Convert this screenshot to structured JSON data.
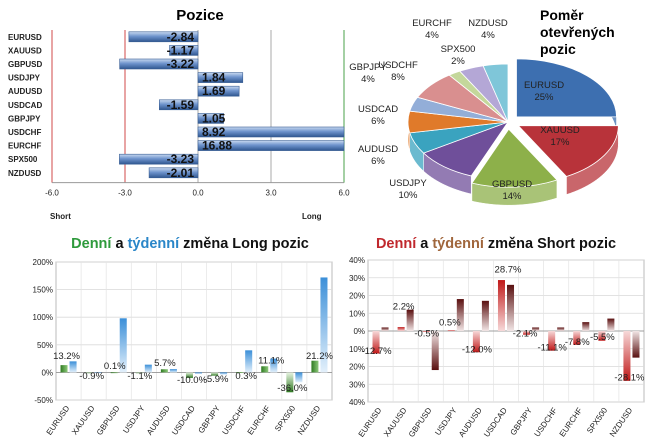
{
  "chart_data": [
    {
      "type": "bar",
      "orientation": "horizontal",
      "title": "Pozice",
      "categories": [
        "EURUSD",
        "XAUUSD",
        "GBPUSD",
        "USDJPY",
        "AUDUSD",
        "USDCAD",
        "GBPJPY",
        "USDCHF",
        "EURCHF",
        "SPX500",
        "NZDUSD"
      ],
      "values": [
        -2.84,
        -1.17,
        -3.22,
        1.84,
        1.69,
        -1.59,
        1.05,
        8.92,
        16.88,
        -3.23,
        -2.01
      ],
      "value_labels": [
        "-2.84",
        "-1.17",
        "-3.22",
        "1.84",
        "1.69",
        "-1.59",
        "1.05",
        "8.92",
        "16.88",
        "-3.23",
        "-2.01"
      ],
      "xlim": [
        -6.0,
        6.0
      ],
      "ticks": [
        "-6.0",
        "-3.0",
        "0.0",
        "3.0",
        "6.0"
      ],
      "left_label": "Short",
      "right_label": "Long",
      "bar_color": "#5b82c0"
    },
    {
      "type": "pie",
      "title": "Poměr otevřených pozic",
      "slices": [
        {
          "label": "EURUSD",
          "percent": "25%",
          "value": 25,
          "color": "#3d6fb0"
        },
        {
          "label": "XAUUSD",
          "percent": "17%",
          "value": 17,
          "color": "#b8333a"
        },
        {
          "label": "GBPUSD",
          "percent": "14%",
          "value": 14,
          "color": "#8db04a"
        },
        {
          "label": "USDJPY",
          "percent": "10%",
          "value": 10,
          "color": "#6f4f9a"
        },
        {
          "label": "AUDUSD",
          "percent": "6%",
          "value": 6,
          "color": "#3aa3bf"
        },
        {
          "label": "USDCAD",
          "percent": "6%",
          "value": 6,
          "color": "#e07a2a"
        },
        {
          "label": "GBPJPY",
          "percent": "4%",
          "value": 4,
          "color": "#93aed8"
        },
        {
          "label": "USDCHF",
          "percent": "8%",
          "value": 8,
          "color": "#d98f8f"
        },
        {
          "label": "SPX500",
          "percent": "2%",
          "value": 2,
          "color": "#c4d79b"
        },
        {
          "label": "EURCHF",
          "percent": "4%",
          "value": 4,
          "color": "#b4a7d6"
        },
        {
          "label": "NZDUSD",
          "percent": "4%",
          "value": 4,
          "color": "#7fc6d9"
        }
      ]
    },
    {
      "type": "bar",
      "title_parts": [
        "Denní",
        " a ",
        "týdenní",
        " změna Long pozic"
      ],
      "title_colors": [
        "#2e9a3c",
        "#111111",
        "#2a86c8",
        "#111111"
      ],
      "categories": [
        "EURUSD",
        "XAUUSD",
        "GBPUSD",
        "USDJPY",
        "AUDUSD",
        "USDCAD",
        "GBPJPY",
        "USDCHF",
        "EURCHF",
        "SPX500",
        "NZDUSD"
      ],
      "series": [
        {
          "name": "Denní",
          "color": "#3f8f2e",
          "values": [
            13.2,
            -0.9,
            0.1,
            -1.1,
            5.7,
            -10.0,
            -5.9,
            0.3,
            11.1,
            -36.0,
            21.2
          ]
        },
        {
          "name": "týdenní",
          "color": "#5aa5e0",
          "values": [
            20,
            0,
            98,
            14,
            6,
            -3,
            -4,
            40,
            25,
            -18,
            172
          ]
        }
      ],
      "value_labels": [
        "13.2%",
        "-0.9%",
        "0.1%",
        "-1.1%",
        "5.7%",
        "-10.0%",
        "-5.9%",
        "0.3%",
        "11.1%",
        "-36.0%",
        "21.2%"
      ],
      "ylim": [
        -50,
        200
      ],
      "yticks": [
        "200%",
        "150%",
        "100%",
        "50%",
        "0%",
        "-50%"
      ],
      "grid": true
    },
    {
      "type": "bar",
      "title_parts": [
        "Denní",
        " a ",
        "týdenní",
        " změna Short pozic"
      ],
      "title_colors": [
        "#c0282d",
        "#111111",
        "#a0663c",
        "#111111"
      ],
      "categories": [
        "EURUSD",
        "XAUUSD",
        "GBPUSD",
        "USDJPY",
        "AUDUSD",
        "USDCAD",
        "GBPJPY",
        "USDCHF",
        "EURCHF",
        "SPX500",
        "NZDUSD"
      ],
      "series": [
        {
          "name": "Denní",
          "color": "#c01818",
          "values": [
            -12.7,
            2.2,
            -0.5,
            0.5,
            -12.0,
            28.7,
            -2.1,
            -11.1,
            -7.8,
            -5.5,
            -28.1
          ]
        },
        {
          "name": "týdenní",
          "color": "#6a1a1a",
          "values": [
            2,
            12,
            -22,
            18,
            17,
            26,
            2,
            2,
            5,
            7,
            -15
          ]
        }
      ],
      "value_labels": [
        "-12.7%",
        "2.2%",
        "-0.5%",
        "0.5%",
        "-12.0%",
        "28.7%",
        "-2.1%",
        "-11.1%",
        "-7.8%",
        "-5.5%",
        "-28.1%"
      ],
      "ylim": [
        -40,
        40
      ],
      "yticks": [
        "40%",
        "30%",
        "20%",
        "10%",
        "0%",
        "10%",
        "20%",
        "30%",
        "40%"
      ],
      "grid": true
    }
  ]
}
